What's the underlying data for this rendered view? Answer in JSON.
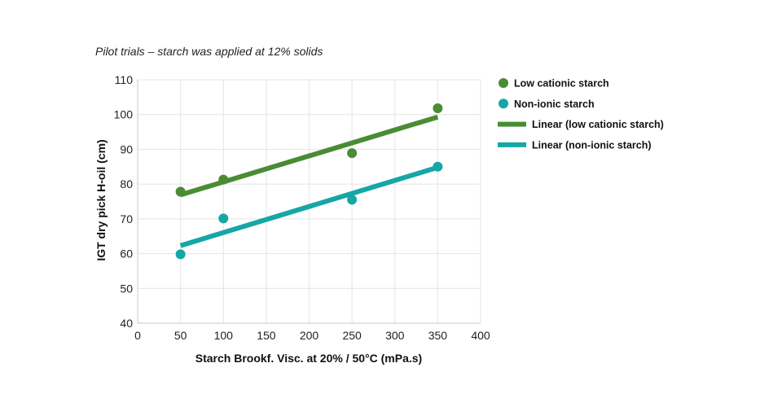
{
  "chart_data": {
    "type": "scatter",
    "subtitle": "Pilot trials – starch was applied at 12% solids",
    "xlabel": "Starch Brookf. Visc. at 20% / 50°C (mPa.s)",
    "ylabel": "IGT dry pick H-oil (cm)",
    "xlim": [
      0,
      400
    ],
    "ylim": [
      40,
      110
    ],
    "x_ticks": [
      "0",
      "50",
      "100",
      "150",
      "200",
      "250",
      "300",
      "350",
      "400"
    ],
    "y_ticks": [
      "40",
      "50",
      "60",
      "70",
      "80",
      "90",
      "100",
      "110"
    ],
    "grid": true,
    "legend_position": "right",
    "series": [
      {
        "name": "Low cationic starch",
        "kind": "points",
        "color": "#4a8c35",
        "x": [
          50,
          100,
          250,
          350
        ],
        "y": [
          77.8,
          81.3,
          88.9,
          101.8
        ]
      },
      {
        "name": "Non-ionic starch",
        "kind": "points",
        "color": "#16a6a6",
        "x": [
          50,
          100,
          250,
          350
        ],
        "y": [
          59.8,
          70.1,
          75.5,
          85.0
        ]
      },
      {
        "name": "Linear (low cationic starch)",
        "kind": "line",
        "color": "#4a8c35",
        "x": [
          50,
          350
        ],
        "y": [
          76.9,
          99.3
        ]
      },
      {
        "name": "Linear (non-ionic starch)",
        "kind": "line",
        "color": "#16a6a6",
        "x": [
          50,
          350
        ],
        "y": [
          62.3,
          84.8
        ]
      }
    ]
  }
}
